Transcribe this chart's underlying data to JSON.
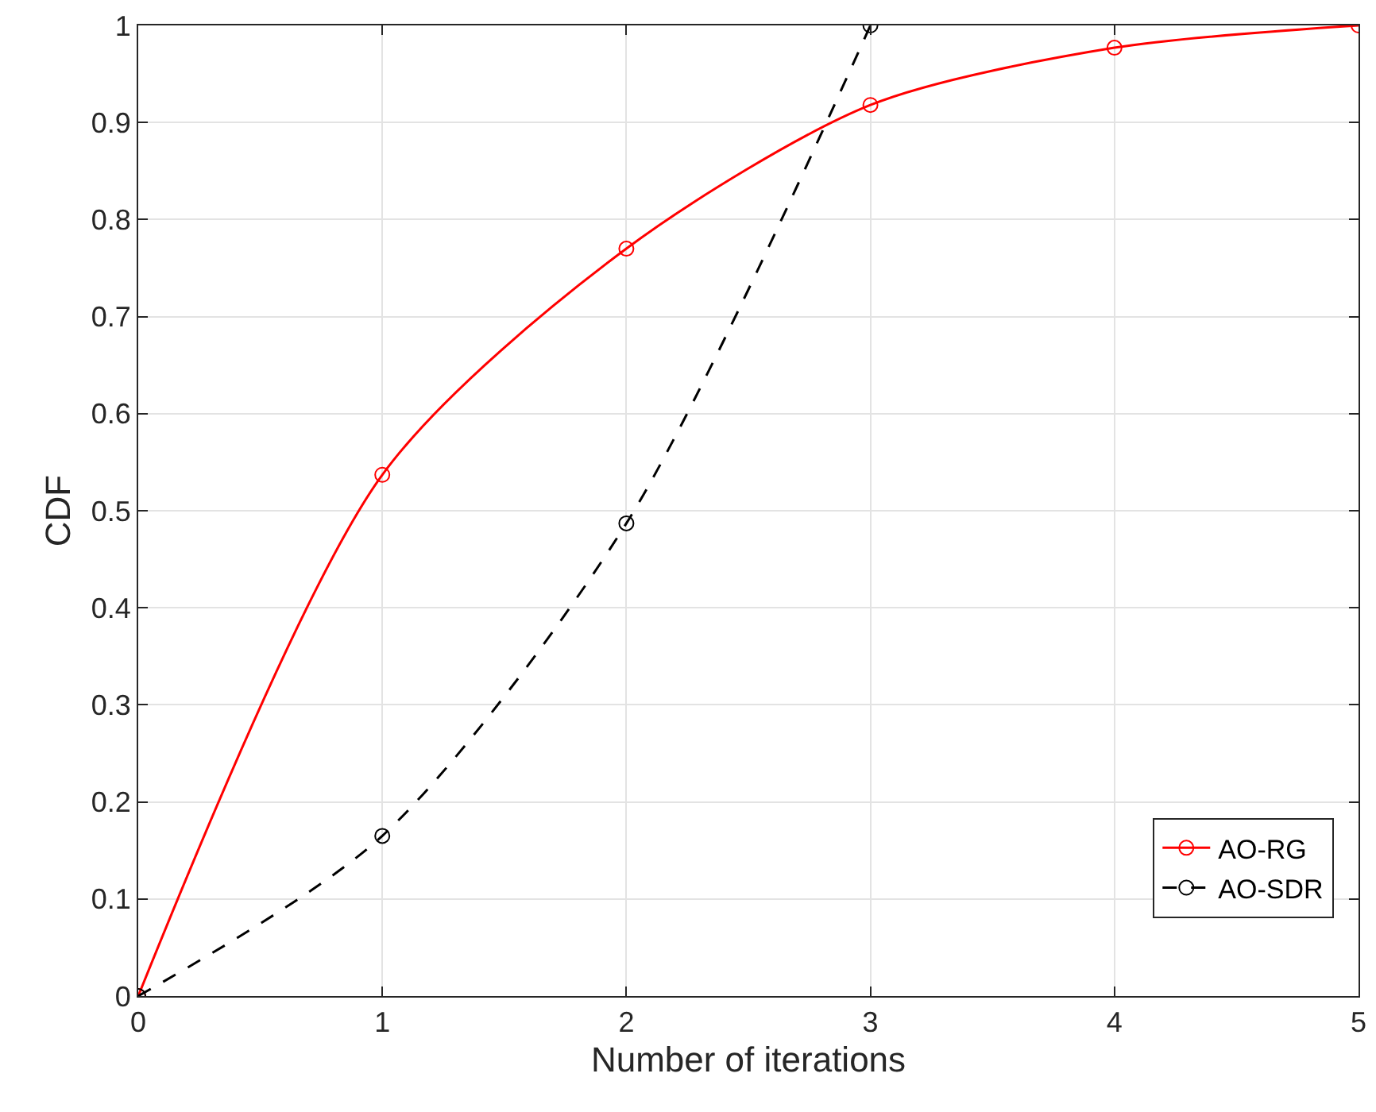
{
  "chart_data": {
    "type": "line",
    "xlabel": "Number of iterations",
    "ylabel": "CDF",
    "xlim": [
      0,
      5
    ],
    "xticks": [
      0,
      1,
      2,
      3,
      4,
      5
    ],
    "ylim": [
      0,
      1
    ],
    "yticks": [
      0,
      0.1,
      0.2,
      0.3,
      0.4,
      0.5,
      0.6,
      0.7,
      0.8,
      0.9,
      1
    ],
    "grid": true,
    "legend": "bottom right",
    "marker": "circle",
    "series": [
      {
        "name": "AO-RG",
        "color": "#ff0000",
        "line_style": "solid",
        "x": [
          0,
          1,
          2,
          3,
          4,
          5
        ],
        "values": [
          0,
          0.537,
          0.77,
          0.918,
          0.977,
          1.0
        ]
      },
      {
        "name": "AO-SDR",
        "color": "#000000",
        "line_style": "dashed",
        "x": [
          0,
          1,
          2,
          3
        ],
        "values": [
          0,
          0.165,
          0.487,
          1.0
        ]
      }
    ]
  }
}
